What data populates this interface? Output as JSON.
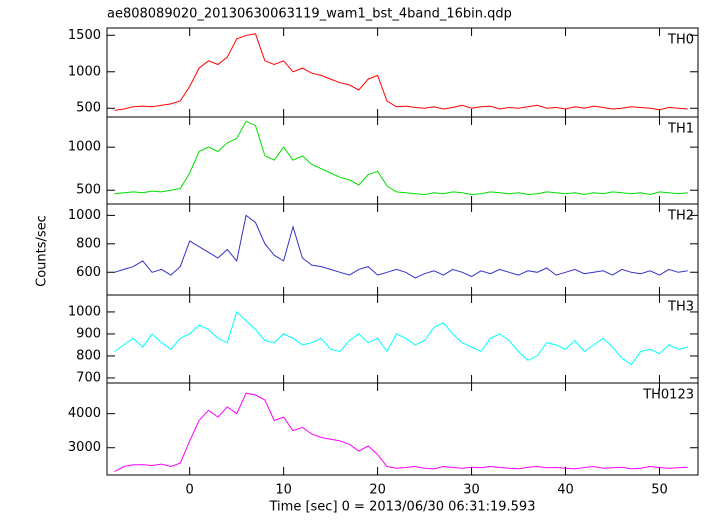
{
  "chart_data": [
    {
      "type": "line",
      "title": "ae808089020_20130630063119_wam1_bst_4band_16bin.qdp",
      "ylabel": "Counts/sec",
      "x": [
        -8,
        -7,
        -6,
        -5,
        -4,
        -3,
        -2,
        -1,
        0,
        1,
        2,
        3,
        4,
        5,
        6,
        7,
        8,
        9,
        10,
        11,
        12,
        13,
        14,
        15,
        16,
        17,
        18,
        19,
        20,
        21,
        22,
        23,
        24,
        25,
        26,
        27,
        28,
        29,
        30,
        31,
        32,
        33,
        34,
        35,
        36,
        37,
        38,
        39,
        40,
        41,
        42,
        43,
        44,
        45,
        46,
        47,
        48,
        49,
        50,
        51,
        52,
        53
      ],
      "xlim": [
        -8.8,
        54.1
      ],
      "ylim": [
        380,
        1600
      ],
      "yticks": [
        500,
        1000,
        1500
      ],
      "series": [
        {
          "name": "TH0",
          "color": "#ff0000",
          "values": [
            470,
            490,
            520,
            530,
            520,
            540,
            560,
            600,
            800,
            1050,
            1150,
            1100,
            1200,
            1450,
            1500,
            1520,
            1150,
            1100,
            1150,
            1000,
            1050,
            980,
            950,
            900,
            850,
            820,
            750,
            900,
            950,
            600,
            520,
            530,
            510,
            500,
            520,
            490,
            510,
            540,
            500,
            520,
            530,
            490,
            510,
            500,
            520,
            540,
            500,
            510,
            490,
            520,
            500,
            530,
            510,
            490,
            500,
            520,
            510,
            500,
            480,
            510,
            500,
            490
          ]
        }
      ]
    },
    {
      "type": "line",
      "x": [
        -8,
        -7,
        -6,
        -5,
        -4,
        -3,
        -2,
        -1,
        0,
        1,
        2,
        3,
        4,
        5,
        6,
        7,
        8,
        9,
        10,
        11,
        12,
        13,
        14,
        15,
        16,
        17,
        18,
        19,
        20,
        21,
        22,
        23,
        24,
        25,
        26,
        27,
        28,
        29,
        30,
        31,
        32,
        33,
        34,
        35,
        36,
        37,
        38,
        39,
        40,
        41,
        42,
        43,
        44,
        45,
        46,
        47,
        48,
        49,
        50,
        51,
        52,
        53
      ],
      "xlim": [
        -8.8,
        54.1
      ],
      "ylim": [
        340,
        1350
      ],
      "yticks": [
        500,
        1000
      ],
      "series": [
        {
          "name": "TH1",
          "color": "#00e000",
          "values": [
            460,
            470,
            480,
            470,
            490,
            480,
            500,
            520,
            700,
            950,
            1000,
            950,
            1050,
            1100,
            1300,
            1250,
            900,
            850,
            1000,
            850,
            900,
            800,
            750,
            700,
            650,
            620,
            560,
            680,
            720,
            550,
            480,
            470,
            460,
            450,
            470,
            460,
            480,
            470,
            450,
            460,
            480,
            470,
            460,
            470,
            450,
            460,
            480,
            470,
            460,
            470,
            450,
            470,
            460,
            480,
            470,
            460,
            470,
            450,
            480,
            470,
            460,
            470
          ]
        }
      ]
    },
    {
      "type": "line",
      "x": [
        -8,
        -7,
        -6,
        -5,
        -4,
        -3,
        -2,
        -1,
        0,
        1,
        2,
        3,
        4,
        5,
        6,
        7,
        8,
        9,
        10,
        11,
        12,
        13,
        14,
        15,
        16,
        17,
        18,
        19,
        20,
        21,
        22,
        23,
        24,
        25,
        26,
        27,
        28,
        29,
        30,
        31,
        32,
        33,
        34,
        35,
        36,
        37,
        38,
        39,
        40,
        41,
        42,
        43,
        44,
        45,
        46,
        47,
        48,
        49,
        50,
        51,
        52,
        53
      ],
      "xlim": [
        -8.8,
        54.1
      ],
      "ylim": [
        440,
        1080
      ],
      "yticks": [
        600,
        800,
        1000
      ],
      "series": [
        {
          "name": "TH2",
          "color": "#3333cc",
          "values": [
            600,
            620,
            640,
            680,
            600,
            620,
            580,
            640,
            820,
            780,
            740,
            700,
            760,
            680,
            1000,
            950,
            800,
            720,
            680,
            920,
            700,
            650,
            640,
            620,
            600,
            580,
            620,
            640,
            580,
            600,
            620,
            600,
            560,
            590,
            610,
            580,
            620,
            600,
            570,
            610,
            590,
            620,
            600,
            580,
            610,
            600,
            630,
            580,
            600,
            620,
            590,
            600,
            610,
            580,
            620,
            600,
            590,
            610,
            580,
            620,
            600,
            610
          ]
        }
      ]
    },
    {
      "type": "line",
      "x": [
        -8,
        -7,
        -6,
        -5,
        -4,
        -3,
        -2,
        -1,
        0,
        1,
        2,
        3,
        4,
        5,
        6,
        7,
        8,
        9,
        10,
        11,
        12,
        13,
        14,
        15,
        16,
        17,
        18,
        19,
        20,
        21,
        22,
        23,
        24,
        25,
        26,
        27,
        28,
        29,
        30,
        31,
        32,
        33,
        34,
        35,
        36,
        37,
        38,
        39,
        40,
        41,
        42,
        43,
        44,
        45,
        46,
        47,
        48,
        49,
        50,
        51,
        52,
        53
      ],
      "xlim": [
        -8.8,
        54.1
      ],
      "ylim": [
        677,
        1077
      ],
      "yticks": [
        700,
        800,
        900,
        1000
      ],
      "series": [
        {
          "name": "TH3",
          "color": "#00ffff",
          "values": [
            820,
            850,
            880,
            840,
            900,
            860,
            830,
            880,
            900,
            940,
            920,
            880,
            860,
            1000,
            960,
            920,
            870,
            860,
            900,
            880,
            850,
            860,
            880,
            830,
            820,
            870,
            900,
            860,
            880,
            820,
            900,
            880,
            850,
            870,
            930,
            950,
            900,
            860,
            840,
            820,
            880,
            900,
            870,
            820,
            780,
            800,
            860,
            850,
            830,
            870,
            820,
            850,
            880,
            840,
            790,
            760,
            820,
            830,
            810,
            850,
            830,
            840
          ]
        }
      ]
    },
    {
      "type": "line",
      "xlabel": "Time [sec] 0 = 2013/06/30 06:31:19.593",
      "x": [
        -8,
        -7,
        -6,
        -5,
        -4,
        -3,
        -2,
        -1,
        0,
        1,
        2,
        3,
        4,
        5,
        6,
        7,
        8,
        9,
        10,
        11,
        12,
        13,
        14,
        15,
        16,
        17,
        18,
        19,
        20,
        21,
        22,
        23,
        24,
        25,
        26,
        27,
        28,
        29,
        30,
        31,
        32,
        33,
        34,
        35,
        36,
        37,
        38,
        39,
        40,
        41,
        42,
        43,
        44,
        45,
        46,
        47,
        48,
        49,
        50,
        51,
        52,
        53
      ],
      "xlim": [
        -8.8,
        54.1
      ],
      "xticks": [
        0,
        10,
        20,
        30,
        40,
        50
      ],
      "ylim": [
        2200,
        4900
      ],
      "yticks": [
        3000,
        4000
      ],
      "series": [
        {
          "name": "TH0123",
          "color": "#ff00ff",
          "values": [
            2300,
            2450,
            2500,
            2500,
            2480,
            2520,
            2450,
            2550,
            3200,
            3800,
            4100,
            3900,
            4200,
            4000,
            4600,
            4550,
            4400,
            3800,
            3900,
            3500,
            3600,
            3400,
            3300,
            3250,
            3200,
            3100,
            2900,
            3050,
            2800,
            2450,
            2400,
            2420,
            2450,
            2400,
            2380,
            2450,
            2420,
            2400,
            2430,
            2410,
            2450,
            2420,
            2400,
            2380,
            2430,
            2450,
            2410,
            2420,
            2400,
            2380,
            2420,
            2450,
            2400,
            2410,
            2430,
            2380,
            2400,
            2450,
            2420,
            2400,
            2410,
            2430
          ]
        }
      ]
    }
  ]
}
